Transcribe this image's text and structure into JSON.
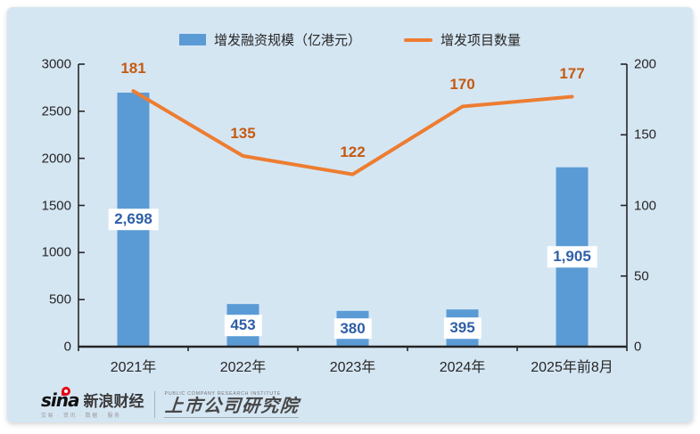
{
  "colors": {
    "panel_bg": "#D5E6F3",
    "bar": "#5B9BD5",
    "bar_value_text": "#2E5FA8",
    "line": "#ED7D31",
    "line_value_text": "#C55A11",
    "axis": "#262626"
  },
  "chart_data": {
    "type": "combo: bar + line, dual y-axis",
    "title": "",
    "categories": [
      "2021年",
      "2022年",
      "2023年",
      "2024年",
      "2025年前8月"
    ],
    "series": [
      {
        "name": "增发融资规模（亿港元）",
        "chart_type": "bar",
        "axis": "left",
        "values": [
          2698,
          453,
          380,
          395,
          1905
        ],
        "value_labels": [
          "2,698",
          "453",
          "380",
          "395",
          "1,905"
        ],
        "color": "#5B9BD5",
        "value_label_color": "#2E5FA8"
      },
      {
        "name": "增发项目数量",
        "chart_type": "line",
        "axis": "right",
        "values": [
          181,
          135,
          122,
          170,
          177
        ],
        "value_labels": [
          "181",
          "135",
          "122",
          "170",
          "177"
        ],
        "color": "#ED7D31",
        "value_label_color": "#C55A11"
      }
    ],
    "left_axis": {
      "min": 0,
      "max": 3000,
      "step": 500,
      "ticks": [
        "0",
        "500",
        "1000",
        "1500",
        "2000",
        "2500",
        "3000"
      ]
    },
    "right_axis": {
      "min": 0,
      "max": 200,
      "step": 50,
      "ticks": [
        "0",
        "50",
        "100",
        "150",
        "200"
      ]
    },
    "legend_position": "top-center",
    "grid": false,
    "plot_background": "#D5E6F3"
  },
  "footer": {
    "sina_brand": "sina",
    "sina_name": "新浪财经",
    "sina_tagline": "交易 · 资讯 · 数据 · 服务",
    "institute_en": "PUBLIC COMPANY RESEARCH INSTITUTE",
    "institute_cn": "上市公司研究院"
  }
}
